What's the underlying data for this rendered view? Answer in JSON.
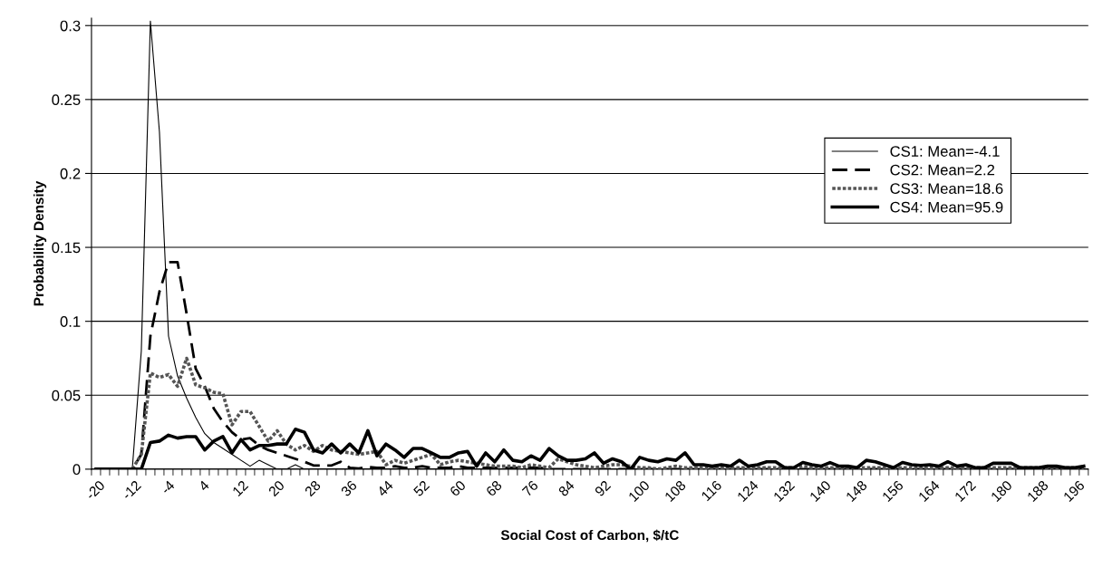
{
  "chart_data": {
    "type": "line",
    "xlabel": "Social Cost of Carbon, $/tC",
    "ylabel": "Probability Density",
    "categories": [
      "-20",
      null,
      null,
      null,
      "-12",
      null,
      null,
      null,
      "-4",
      null,
      null,
      null,
      "4",
      null,
      null,
      null,
      "12",
      null,
      null,
      null,
      "20",
      null,
      null,
      null,
      "28",
      null,
      null,
      null,
      "36",
      null,
      null,
      null,
      "44",
      null,
      null,
      null,
      "52",
      null,
      null,
      null,
      "60",
      null,
      null,
      null,
      "68",
      null,
      null,
      null,
      "76",
      null,
      null,
      null,
      "84",
      null,
      null,
      null,
      "92",
      null,
      null,
      null,
      "100",
      null,
      null,
      null,
      "108",
      null,
      null,
      null,
      "116",
      null,
      null,
      null,
      "124",
      null,
      null,
      null,
      "132",
      null,
      null,
      null,
      "140",
      null,
      null,
      null,
      "148",
      null,
      null,
      null,
      "156",
      null,
      null,
      null,
      "164",
      null,
      null,
      null,
      "172",
      null,
      null,
      null,
      "180",
      null,
      null,
      null,
      "188",
      null,
      null,
      null,
      "196",
      null
    ],
    "ylim": [
      0,
      0.305
    ],
    "yticks": [
      0,
      0.05,
      0.1,
      0.15,
      0.2,
      0.25,
      0.3
    ],
    "grid": "y",
    "legend": "right",
    "series": [
      {
        "name": "CS1: Mean=-4.1",
        "color": "#000000",
        "line_style": "solid",
        "values": [
          0,
          0,
          0,
          0,
          0,
          0.08,
          0.303,
          0.228,
          0.09,
          0.063,
          0.048,
          0.035,
          0.024,
          0.018,
          0.014,
          0.01,
          0.006,
          0.002,
          0.006,
          0.003,
          0,
          0,
          0.003,
          0,
          0,
          0,
          0,
          0,
          0,
          0,
          0,
          0,
          0,
          0,
          0,
          0,
          0,
          0,
          0,
          0,
          0,
          0,
          0,
          0,
          0,
          0,
          0,
          0,
          0,
          0,
          0,
          0,
          0,
          0,
          0,
          0,
          0,
          0,
          0,
          0,
          0,
          0,
          0,
          0,
          0,
          0,
          0,
          0,
          0,
          0,
          0,
          0,
          0,
          0,
          0,
          0,
          0,
          0,
          0,
          0,
          0,
          0,
          0,
          0,
          0,
          0,
          0,
          0,
          0,
          0,
          0,
          0,
          0,
          0,
          0,
          0,
          0,
          0,
          0,
          0,
          0,
          0,
          0,
          0,
          0,
          0,
          0,
          0,
          0,
          0
        ]
      },
      {
        "name": "CS2: Mean=2.2",
        "color": "#000000",
        "line_style": "dashed",
        "values": [
          0,
          0,
          0,
          0,
          0,
          0.01,
          0.09,
          0.12,
          0.14,
          0.14,
          0.105,
          0.068,
          0.056,
          0.041,
          0.032,
          0.025,
          0.02,
          0.021,
          0.016,
          0.013,
          0.011,
          0.009,
          0.007,
          0.005,
          0.0025,
          0.0025,
          0.0025,
          0.005,
          0.001,
          0.0005,
          0.0015,
          0.001,
          0.001,
          0.002,
          0.001,
          0.001,
          0.002,
          0.001,
          0.001,
          0.001,
          0.002,
          0.001,
          0.001,
          0.001,
          0.001,
          0.001,
          0.001,
          0.001,
          0.001,
          0.001,
          0,
          0,
          0,
          0,
          0,
          0,
          0,
          0,
          0,
          0,
          0,
          0,
          0,
          0,
          0,
          0,
          0,
          0,
          0,
          0,
          0,
          0,
          0,
          0,
          0,
          0,
          0,
          0,
          0,
          0,
          0,
          0,
          0,
          0,
          0,
          0,
          0,
          0,
          0,
          0,
          0,
          0,
          0,
          0,
          0,
          0,
          0,
          0,
          0,
          0,
          0,
          0,
          0,
          0,
          0,
          0,
          0,
          0,
          0,
          0
        ]
      },
      {
        "name": "CS3: Mean=18.6",
        "color": "#555555",
        "line_style": "dotted",
        "values": [
          0,
          0,
          0,
          0,
          0,
          0.01,
          0.065,
          0.062,
          0.064,
          0.056,
          0.075,
          0.057,
          0.055,
          0.052,
          0.051,
          0.03,
          0.039,
          0.039,
          0.029,
          0.019,
          0.026,
          0.017,
          0.013,
          0.016,
          0.012,
          0.016,
          0.013,
          0.012,
          0.011,
          0.01,
          0.011,
          0.012,
          0.003,
          0.006,
          0.004,
          0.006,
          0.008,
          0.01,
          0.003,
          0.005,
          0.006,
          0.005,
          0.004,
          0.003,
          0.002,
          0.002,
          0.002,
          0.001,
          0.003,
          0.002,
          0.001,
          0.007,
          0.005,
          0.003,
          0.002,
          0.001,
          0.002,
          0.003,
          0.003,
          0.002,
          0.001,
          0.001,
          0,
          0.001,
          0.002,
          0.001,
          0.001,
          0.001,
          0.001,
          0.001,
          0.001,
          0.001,
          0.001,
          0.001,
          0.001,
          0.001,
          0.001,
          0.001,
          0.002,
          0.001,
          0.001,
          0.001,
          0.001,
          0.001,
          0.001,
          0.001,
          0.001,
          0.001,
          0.001,
          0.001,
          0.001,
          0.001,
          0.001,
          0.001,
          0.001,
          0.001,
          0.001,
          0.001,
          0.001,
          0.001,
          0.001,
          0.001,
          0.001,
          0.001,
          0.001,
          0.001,
          0.001,
          0.001,
          0.001,
          0.001
        ]
      },
      {
        "name": "CS4: Mean=95.9",
        "color": "#000000",
        "line_style": "solid",
        "values": [
          0,
          0,
          0,
          0,
          0,
          0,
          0.018,
          0.019,
          0.023,
          0.021,
          0.022,
          0.022,
          0.013,
          0.019,
          0.022,
          0.011,
          0.02,
          0.013,
          0.016,
          0.016,
          0.017,
          0.017,
          0.027,
          0.025,
          0.013,
          0.011,
          0.017,
          0.011,
          0.017,
          0.011,
          0.026,
          0.009,
          0.017,
          0.013,
          0.008,
          0.014,
          0.014,
          0.011,
          0.008,
          0.008,
          0.011,
          0.012,
          0.002,
          0.011,
          0.005,
          0.013,
          0.006,
          0.005,
          0.009,
          0.006,
          0.014,
          0.009,
          0.006,
          0.006,
          0.007,
          0.011,
          0.004,
          0.007,
          0.005,
          0,
          0.008,
          0.006,
          0.005,
          0.007,
          0.006,
          0.011,
          0.003,
          0.003,
          0.002,
          0.003,
          0.002,
          0.006,
          0.002,
          0.003,
          0.005,
          0.005,
          0.001,
          0.001,
          0.0045,
          0.003,
          0.002,
          0.0045,
          0.002,
          0.002,
          0.001,
          0.006,
          0.005,
          0.003,
          0.001,
          0.0045,
          0.003,
          0.0025,
          0.003,
          0.002,
          0.005,
          0.002,
          0.003,
          0.001,
          0.001,
          0.004,
          0.004,
          0.004,
          0.001,
          0.001,
          0.001,
          0.002,
          0.002,
          0.001,
          0.001,
          0.002
        ]
      }
    ]
  }
}
